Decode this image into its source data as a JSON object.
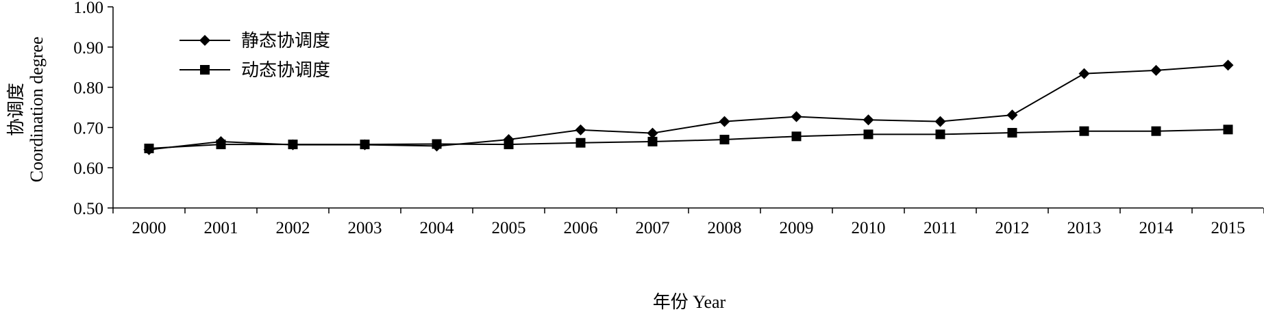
{
  "chart_data": {
    "type": "line",
    "categories": [
      "2000",
      "2001",
      "2002",
      "2003",
      "2004",
      "2005",
      "2006",
      "2007",
      "2008",
      "2009",
      "2010",
      "2011",
      "2012",
      "2013",
      "2014",
      "2015"
    ],
    "series": [
      {
        "name": "静态协调度",
        "marker": "diamond",
        "values": [
          0.645,
          0.665,
          0.657,
          0.657,
          0.654,
          0.67,
          0.694,
          0.686,
          0.715,
          0.727,
          0.719,
          0.715,
          0.731,
          0.834,
          0.842,
          0.855
        ]
      },
      {
        "name": "动态协调度",
        "marker": "square",
        "values": [
          0.648,
          0.658,
          0.658,
          0.658,
          0.659,
          0.658,
          0.662,
          0.665,
          0.67,
          0.678,
          0.683,
          0.683,
          0.687,
          0.691,
          0.691,
          0.695
        ]
      }
    ],
    "xlabel": "年份 Year",
    "ylabel_cn": "协调度",
    "ylabel_en": "Coordination degree",
    "ylim": [
      0.5,
      1.0
    ],
    "yticks": [
      "0.50",
      "0.60",
      "0.70",
      "0.80",
      "0.90",
      "1.00"
    ],
    "grid": false,
    "legend_position": "top-left",
    "line_color": "#000000"
  }
}
